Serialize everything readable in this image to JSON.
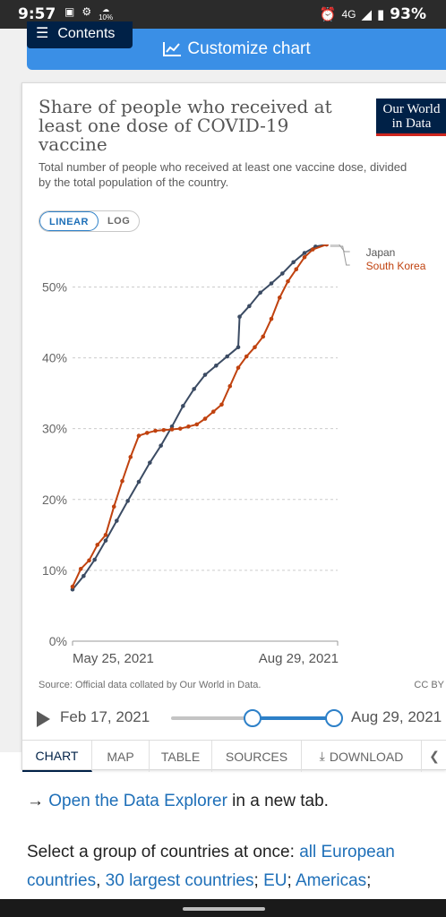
{
  "status_bar": {
    "time": "9:57",
    "temp_small": "10%",
    "network": "4G",
    "battery": "93%"
  },
  "top": {
    "contents_label": "Contents",
    "customize_label": "Customize chart"
  },
  "card": {
    "title": "Share of people who received at least one dose of COVID-19 vaccine",
    "logo_line1": "Our World",
    "logo_line2": "in Data",
    "subtitle": "Total number of people who received at least one vaccine dose, divided by the total population of the country.",
    "scale_linear": "LINEAR",
    "scale_log": "LOG",
    "source": "Source: Official data collated by Our World in Data.",
    "license": "CC BY"
  },
  "chart_data": {
    "type": "line",
    "ylim": [
      0,
      56
    ],
    "yticks": [
      "0%",
      "10%",
      "20%",
      "30%",
      "40%",
      "50%"
    ],
    "ytick_values": [
      0,
      10,
      20,
      30,
      40,
      50
    ],
    "xtick_labels": [
      "May 25, 2021",
      "Aug 29, 2021"
    ],
    "x_range_days": [
      0,
      96
    ],
    "xtick_days": [
      0,
      96
    ],
    "series": [
      {
        "name": "Japan",
        "color": "#3b4b63",
        "points": [
          [
            0,
            7.3
          ],
          [
            4,
            9.2
          ],
          [
            8,
            11.5
          ],
          [
            12,
            14.2
          ],
          [
            16,
            17.0
          ],
          [
            20,
            19.8
          ],
          [
            24,
            22.5
          ],
          [
            28,
            25.2
          ],
          [
            32,
            27.6
          ],
          [
            36,
            30.3
          ],
          [
            40,
            33.2
          ],
          [
            44,
            35.6
          ],
          [
            48,
            37.6
          ],
          [
            52,
            38.9
          ],
          [
            56,
            40.2
          ],
          [
            60,
            41.5
          ],
          [
            60.5,
            45.8
          ],
          [
            64,
            47.3
          ],
          [
            68,
            49.2
          ],
          [
            72,
            50.5
          ],
          [
            76,
            51.9
          ],
          [
            80,
            53.5
          ],
          [
            84,
            54.8
          ],
          [
            88,
            55.7
          ],
          [
            92,
            56.0
          ]
        ]
      },
      {
        "name": "South Korea",
        "color": "#c0420f",
        "points": [
          [
            0,
            7.7
          ],
          [
            3,
            10.2
          ],
          [
            6,
            11.4
          ],
          [
            9,
            13.6
          ],
          [
            12,
            15.0
          ],
          [
            15,
            19.0
          ],
          [
            18,
            22.6
          ],
          [
            21,
            26.0
          ],
          [
            24,
            29.0
          ],
          [
            27,
            29.4
          ],
          [
            30,
            29.7
          ],
          [
            33,
            29.8
          ],
          [
            36,
            29.9
          ],
          [
            39,
            30.0
          ],
          [
            42,
            30.3
          ],
          [
            45,
            30.6
          ],
          [
            48,
            31.4
          ],
          [
            51,
            32.4
          ],
          [
            54,
            33.4
          ],
          [
            57,
            36.0
          ],
          [
            60,
            38.6
          ],
          [
            63,
            40.2
          ],
          [
            66,
            41.5
          ],
          [
            69,
            43.0
          ],
          [
            72,
            45.5
          ],
          [
            75,
            48.5
          ],
          [
            78,
            50.8
          ],
          [
            81,
            52.5
          ],
          [
            84,
            54.2
          ],
          [
            87,
            55.3
          ],
          [
            92,
            56.0
          ]
        ]
      }
    ]
  },
  "timeline": {
    "start": "Feb 17, 2021",
    "end": "Aug 29, 2021",
    "start_handle_fraction": 0.5,
    "end_handle_fraction": 1.0
  },
  "tabs": [
    "CHART",
    "MAP",
    "TABLE",
    "SOURCES",
    "DOWNLOAD"
  ],
  "below": {
    "arrow": "→",
    "explorer_link": "Open the Data Explorer",
    "explorer_rest": " in a new tab.",
    "group_prefix": "Select a group of countries at once: ",
    "group_link1": "all European countries",
    "group_sep1": ", ",
    "group_link2": "30 largest countries",
    "group_sep2": "; ",
    "group_link3": "EU",
    "group_sep3": "; ",
    "group_link4": "Americas",
    "group_sep4": ";"
  }
}
